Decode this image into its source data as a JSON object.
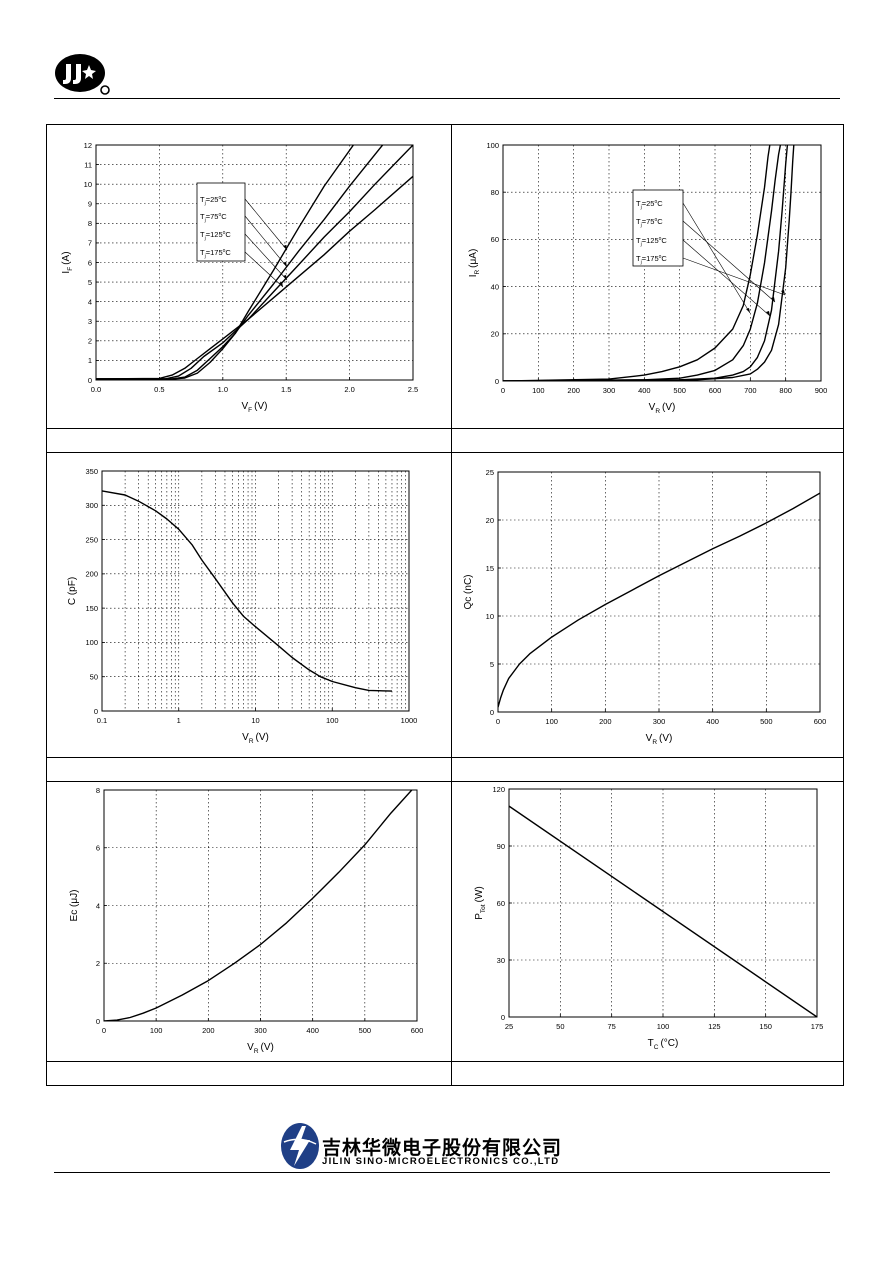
{
  "header": {
    "logo_icon": "jsc-logo-icon"
  },
  "footer": {
    "logo_icon": "jilin-sino-logo-icon",
    "company_cn": "吉林华微电子股份有限公司",
    "company_en": "JILIN SINO-MICROELECTRONICS CO.,LTD"
  },
  "chart_data": [
    {
      "id": "vf-if",
      "type": "line",
      "xlabel": "V",
      "xlabel_sub": "F",
      "xlabel_unit": "(V)",
      "ylabel": "I",
      "ylabel_sub": "F",
      "ylabel_unit": "(A)",
      "xlim": [
        0,
        2.5
      ],
      "ylim": [
        0,
        12
      ],
      "grid": true,
      "legend": "top-center",
      "xticks": [
        0,
        0.5,
        1.0,
        1.5,
        2.0,
        2.5
      ],
      "xtick_labels": [
        "0.0",
        "0.5",
        "1.0",
        "1.5",
        "2.0",
        "2.5"
      ],
      "yticks": [
        0,
        1,
        2,
        3,
        4,
        5,
        6,
        7,
        8,
        9,
        10,
        11,
        12
      ],
      "ytick_labels": [
        "0",
        "1",
        "2",
        "3",
        "4",
        "5",
        "6",
        "7",
        "8",
        "9",
        "10",
        "11",
        "12"
      ],
      "legend_entries": [
        "T =25 C",
        "T =75 C",
        "T =125 C",
        "T =175 C"
      ],
      "series": [
        {
          "name": "T =25 C",
          "x": [
            0,
            0.6,
            0.7,
            0.8,
            0.9,
            1.0,
            1.1,
            1.2,
            1.4,
            1.6,
            1.8,
            2.03
          ],
          "y": [
            0.05,
            0.05,
            0.1,
            0.35,
            0.9,
            1.6,
            2.4,
            3.5,
            5.6,
            7.8,
            9.9,
            12
          ]
        },
        {
          "name": "T =75 C",
          "x": [
            0,
            0.6,
            0.7,
            0.8,
            0.9,
            1.0,
            1.1,
            1.2,
            1.4,
            1.6,
            1.8,
            2.0,
            2.26
          ],
          "y": [
            0.05,
            0.05,
            0.15,
            0.5,
            1.1,
            1.7,
            2.4,
            3.3,
            4.9,
            6.6,
            8.2,
            9.9,
            12
          ]
        },
        {
          "name": "T =125 C",
          "x": [
            0,
            0.55,
            0.65,
            0.75,
            0.85,
            1.0,
            1.1,
            1.2,
            1.4,
            1.6,
            1.8,
            2.0,
            2.2,
            2.5
          ],
          "y": [
            0.05,
            0.06,
            0.2,
            0.6,
            1.2,
            1.9,
            2.5,
            3.1,
            4.5,
            5.9,
            7.3,
            8.6,
            10.0,
            12
          ]
        },
        {
          "name": "T =175 C",
          "x": [
            0,
            0.5,
            0.6,
            0.7,
            0.8,
            0.9,
            1.0,
            1.1,
            1.2,
            1.4,
            1.6,
            1.8,
            2.0,
            2.2,
            2.5
          ],
          "y": [
            0.05,
            0.08,
            0.25,
            0.6,
            1.1,
            1.6,
            2.1,
            2.6,
            3.1,
            4.2,
            5.3,
            6.4,
            7.6,
            8.7,
            10.4
          ]
        }
      ]
    },
    {
      "id": "vr-ir",
      "type": "line",
      "xlabel": "V",
      "xlabel_sub": "R",
      "xlabel_unit": "(V)",
      "ylabel": "I",
      "ylabel_sub": "R",
      "ylabel_unit": "(μA)",
      "xlim": [
        0,
        900
      ],
      "ylim": [
        0,
        100
      ],
      "grid": true,
      "legend": "top-center",
      "xticks": [
        0,
        100,
        200,
        300,
        400,
        500,
        600,
        700,
        800,
        900
      ],
      "xtick_labels": [
        "0",
        "100",
        "200",
        "300",
        "400",
        "500",
        "600",
        "700",
        "800",
        "900"
      ],
      "yticks": [
        0,
        20,
        40,
        60,
        80,
        100
      ],
      "ytick_labels": [
        "0",
        "20",
        "40",
        "60",
        "80",
        "100"
      ],
      "legend_entries": [
        "T =25 C",
        "T =75 C",
        "T =125 C",
        "T =175 C"
      ],
      "series": [
        {
          "name": "T =25 C",
          "x": [
            0,
            300,
            400,
            450,
            500,
            550,
            600,
            650,
            680,
            700,
            720,
            740,
            750,
            755
          ],
          "y": [
            0,
            0.8,
            2.5,
            4,
            6,
            9,
            14,
            22,
            32,
            45,
            62,
            82,
            95,
            100
          ]
        },
        {
          "name": "T =75 C",
          "x": [
            0,
            400,
            500,
            550,
            600,
            650,
            680,
            700,
            720,
            740,
            760,
            770,
            780,
            785
          ],
          "y": [
            0,
            0.5,
            1.2,
            2.5,
            4.5,
            9,
            15,
            22,
            33,
            50,
            72,
            85,
            96,
            100
          ]
        },
        {
          "name": "T =125 C",
          "x": [
            0,
            500,
            600,
            650,
            680,
            700,
            720,
            740,
            760,
            780,
            790,
            800,
            805
          ],
          "y": [
            0,
            0.5,
            1.2,
            2.5,
            4,
            6,
            10,
            17,
            30,
            55,
            72,
            92,
            100
          ]
        },
        {
          "name": "T =175 C",
          "x": [
            0,
            550,
            650,
            700,
            720,
            740,
            760,
            780,
            800,
            810,
            815,
            820,
            823
          ],
          "y": [
            0,
            0.5,
            1.5,
            3,
            5,
            8,
            13,
            24,
            48,
            68,
            80,
            93,
            100
          ]
        }
      ]
    },
    {
      "id": "vr-c",
      "type": "line",
      "xscale": "log",
      "xlabel": "V",
      "xlabel_sub": "R",
      "xlabel_unit": "(V)",
      "ylabel": "C (pF)",
      "ylabel_sub": "",
      "ylabel_unit": "",
      "xlim": [
        0.1,
        1000
      ],
      "ylim": [
        0,
        350
      ],
      "grid": true,
      "xticks": [
        0.1,
        1,
        10,
        100,
        1000
      ],
      "xtick_labels": [
        "0.1",
        "1",
        "10",
        "100",
        "1000"
      ],
      "yticks": [
        0,
        50,
        100,
        150,
        200,
        250,
        300,
        350
      ],
      "ytick_labels": [
        "0",
        "50",
        "100",
        "150",
        "200",
        "250",
        "300",
        "350"
      ],
      "series": [
        {
          "x": [
            0.1,
            0.2,
            0.3,
            0.5,
            0.7,
            1,
            1.5,
            2,
            3,
            5,
            7,
            10,
            20,
            30,
            50,
            70,
            100,
            200,
            300,
            600
          ],
          "y": [
            321,
            315,
            306,
            292,
            280,
            265,
            242,
            220,
            193,
            158,
            138,
            123,
            95,
            78,
            60,
            50,
            43,
            34,
            30,
            29
          ]
        }
      ]
    },
    {
      "id": "vr-qc",
      "type": "line",
      "xlabel": "V",
      "xlabel_sub": "R",
      "xlabel_unit": "(V)",
      "ylabel": "Qc (nC)",
      "ylabel_sub": "",
      "ylabel_unit": "",
      "xlim": [
        0,
        600
      ],
      "ylim": [
        0,
        25
      ],
      "grid": true,
      "xticks": [
        0,
        100,
        200,
        300,
        400,
        500,
        600
      ],
      "xtick_labels": [
        "0",
        "100",
        "200",
        "300",
        "400",
        "500",
        "600"
      ],
      "yticks": [
        0,
        5,
        10,
        15,
        20,
        25
      ],
      "ytick_labels": [
        "0",
        "5",
        "10",
        "15",
        "20",
        "25"
      ],
      "series": [
        {
          "x": [
            0,
            5,
            10,
            20,
            40,
            60,
            100,
            150,
            200,
            250,
            300,
            350,
            400,
            450,
            500,
            550,
            600
          ],
          "y": [
            0.5,
            1.5,
            2.3,
            3.5,
            5.0,
            6.1,
            7.8,
            9.6,
            11.2,
            12.7,
            14.2,
            15.6,
            17.0,
            18.3,
            19.7,
            21.2,
            22.8
          ]
        }
      ]
    },
    {
      "id": "vr-ec",
      "type": "line",
      "xlabel": "V",
      "xlabel_sub": "R",
      "xlabel_unit": "(V)",
      "ylabel": "Ec (μJ)",
      "ylabel_sub": "",
      "ylabel_unit": "",
      "xlim": [
        0,
        600
      ],
      "ylim": [
        0,
        8
      ],
      "grid": true,
      "xticks": [
        0,
        100,
        200,
        300,
        400,
        500,
        600
      ],
      "xtick_labels": [
        "0",
        "100",
        "200",
        "300",
        "400",
        "500",
        "600"
      ],
      "yticks": [
        0,
        2,
        4,
        6,
        8
      ],
      "ytick_labels": [
        "0",
        "2",
        "4",
        "6",
        "8"
      ],
      "series": [
        {
          "x": [
            0,
            25,
            50,
            75,
            100,
            150,
            200,
            250,
            300,
            350,
            400,
            450,
            500,
            550,
            590
          ],
          "y": [
            0,
            0.03,
            0.12,
            0.27,
            0.45,
            0.9,
            1.4,
            2.0,
            2.65,
            3.4,
            4.25,
            5.15,
            6.1,
            7.2,
            8.0
          ]
        }
      ]
    },
    {
      "id": "tc-ptot",
      "type": "line",
      "xlabel": "T",
      "xlabel_sub": "C",
      "xlabel_unit": "(°C)",
      "ylabel": "P",
      "ylabel_sub": "Tot",
      "ylabel_unit": "(W)",
      "xlim": [
        25,
        175
      ],
      "ylim": [
        0,
        120
      ],
      "grid": true,
      "xticks": [
        25,
        50,
        75,
        100,
        125,
        150,
        175
      ],
      "xtick_labels": [
        "25",
        "50",
        "75",
        "100",
        "125",
        "150",
        "175"
      ],
      "yticks": [
        0,
        30,
        60,
        90,
        120
      ],
      "ytick_labels": [
        "0",
        "30",
        "60",
        "90",
        "120"
      ],
      "series": [
        {
          "x": [
            25,
            175
          ],
          "y": [
            111,
            0
          ]
        }
      ]
    }
  ]
}
